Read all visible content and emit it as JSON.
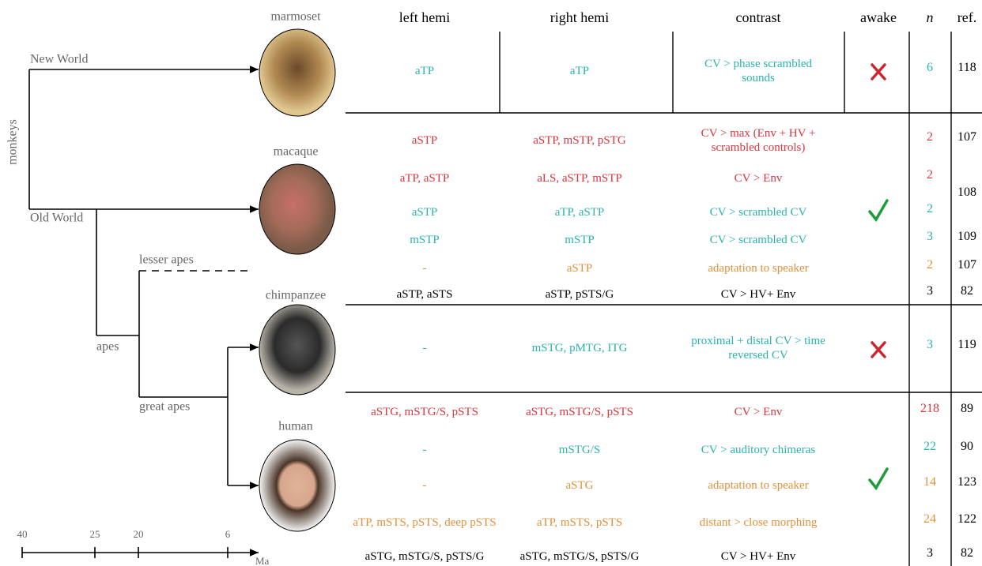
{
  "tree": {
    "root": "monkeys",
    "new_world": "New World",
    "old_world": "Old World",
    "lesser_apes": "lesser apes",
    "apes": "apes",
    "great_apes": "great apes"
  },
  "species": [
    "marmoset",
    "macaque",
    "chimpanzee",
    "human"
  ],
  "time_axis": {
    "ticks": [
      "40",
      "25",
      "20",
      "6"
    ],
    "unit": "Ma"
  },
  "table": {
    "headers": [
      "left hemi",
      "right hemi",
      "contrast",
      "awake",
      "n",
      "ref."
    ],
    "rows": [
      {
        "left": "aTP",
        "right": "aTP",
        "contrast": "CV > phase scrambled sounds",
        "n": "6",
        "ref": "118",
        "color": "#2bb3ad"
      },
      {
        "left": "aSTP",
        "right": "aSTP, mSTP, pSTG",
        "contrast": "CV > max (Env + HV + scrambled controls)",
        "n": "2",
        "ref": "107",
        "color": "#d9363e"
      },
      {
        "left": "aTP, aSTP",
        "right": "aLS, aSTP, mSTP",
        "contrast": "CV > Env",
        "n": "2",
        "ref": "108",
        "color": "#d9363e"
      },
      {
        "left": "aSTP",
        "right": "aTP, aSTP",
        "contrast": "CV > scrambled CV",
        "n": "2",
        "color": "#2bb3ad"
      },
      {
        "left": "mSTP",
        "right": "mSTP",
        "contrast": "CV > scrambled CV",
        "n": "3",
        "ref": "109",
        "color": "#2bb3ad"
      },
      {
        "left": "-",
        "right": "aSTP",
        "contrast": "adaptation to speaker",
        "n": "2",
        "ref": "107",
        "color": "#e0913a"
      },
      {
        "left": "aSTP, aSTS",
        "right": "aSTP, pSTS/G",
        "contrast": "CV > HV+ Env",
        "n": "3",
        "ref": "82",
        "color": "#000000"
      },
      {
        "left": "-",
        "right": "mSTG, pMTG, ITG",
        "contrast": "proximal + distal CV > time reversed CV",
        "n": "3",
        "ref": "119",
        "color": "#2bb3ad"
      },
      {
        "left": "aSTG, mSTG/S, pSTS",
        "right": "aSTG, mSTG/S, pSTS",
        "contrast": "CV > Env",
        "n": "218",
        "ref": "89",
        "color": "#d9363e"
      },
      {
        "left": "-",
        "right": "mSTG/S",
        "contrast": "CV > auditory chimeras",
        "n": "22",
        "ref": "90",
        "color": "#2bb3ad"
      },
      {
        "left": "-",
        "right": "aSTG",
        "contrast": "adaptation to speaker",
        "n": "14",
        "ref": "123",
        "color": "#e0913a"
      },
      {
        "left": "aTP, mSTS, pSTS, deep pSTS",
        "right": "aTP, mSTS, pSTS",
        "contrast": "distant > close morphing",
        "n": "24",
        "ref": "122",
        "color": "#e0913a"
      },
      {
        "left": "aSTG, mSTG/S, pSTS/G",
        "right": "aSTG, mSTG/S, pSTS/G",
        "contrast": "CV > HV+ Env",
        "n": "3",
        "ref": "82",
        "color": "#000000"
      }
    ]
  }
}
